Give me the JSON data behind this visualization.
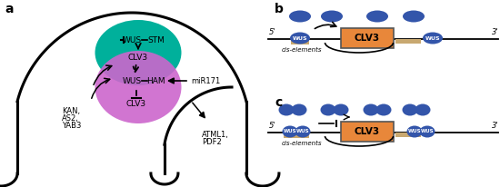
{
  "fig_width": 5.5,
  "fig_height": 2.06,
  "dpi": 100,
  "bg_color": "#ffffff",
  "teal_color": "#00b09b",
  "purple_color": "#cc66cc",
  "blue_oval_color": "#3355aa",
  "orange_box_color": "#e8873a",
  "tan_binding_color": "#c8a870",
  "label_a": "a",
  "label_b": "b",
  "label_c": "c"
}
